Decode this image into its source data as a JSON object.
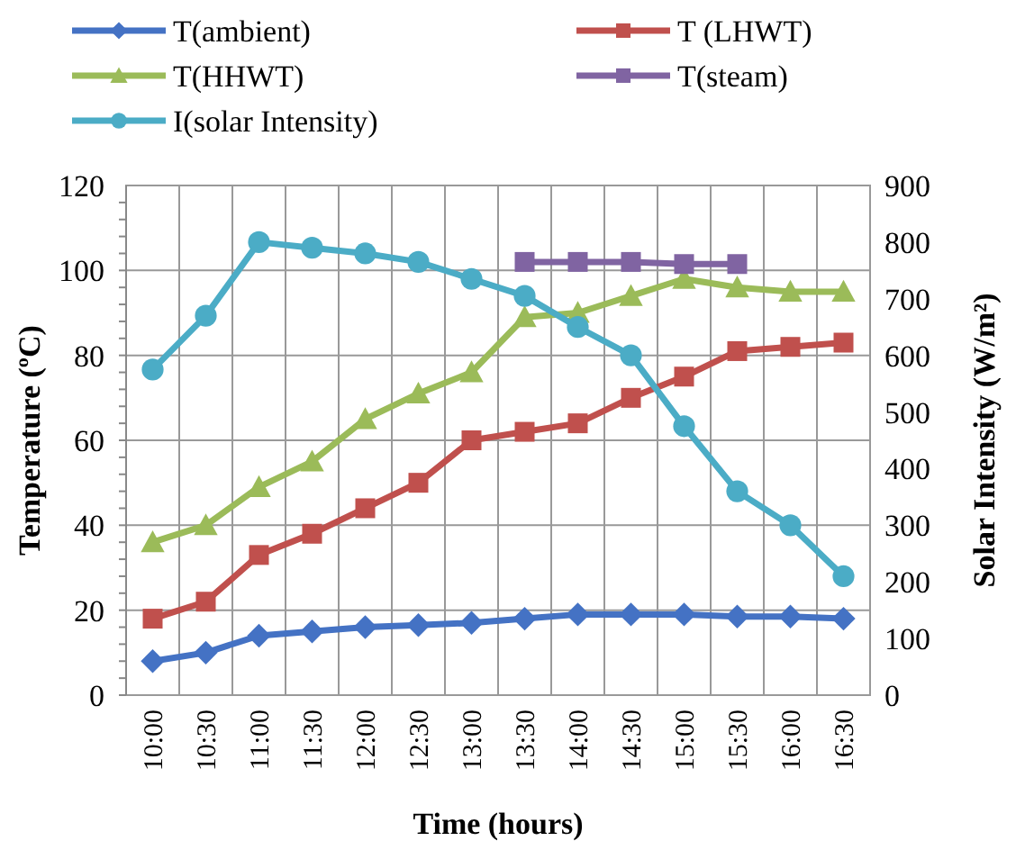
{
  "chart_data": {
    "type": "line",
    "xlabel": "Time (hours)",
    "ylabel": "Temperature (ºC)",
    "y2label": "Solar Intensity (W/m²)",
    "categories": [
      "10:00",
      "10:30",
      "11:00",
      "11:30",
      "12:00",
      "12:30",
      "13:00",
      "13:30",
      "14:00",
      "14:30",
      "15:00",
      "15:30",
      "16:00",
      "16:30"
    ],
    "series": [
      {
        "name": "T(ambient)",
        "color": "#4472c4",
        "marker": "diamond",
        "values": [
          8,
          10,
          14,
          15,
          16,
          16.5,
          17,
          18,
          19,
          19,
          19,
          18.5,
          18.5,
          18
        ]
      },
      {
        "name": "T (LHWT)",
        "color": "#c0504d",
        "marker": "square",
        "values": [
          18,
          22,
          33,
          38,
          44,
          50,
          60,
          62,
          64,
          70,
          75,
          81,
          82,
          83
        ]
      },
      {
        "name": "T(HHWT)",
        "color": "#9bbb59",
        "marker": "triangle",
        "values": [
          36,
          40,
          49,
          55,
          65,
          71,
          76,
          89,
          90,
          94,
          98,
          96,
          95,
          95
        ]
      },
      {
        "name": "T(steam)",
        "color": "#8064a2",
        "marker": "square",
        "values": [
          null,
          null,
          null,
          null,
          null,
          null,
          null,
          102,
          102,
          102,
          101.5,
          101.5,
          null,
          null
        ]
      },
      {
        "name": "I(solar Intensity)",
        "color": "#4bacc6",
        "marker": "circle",
        "axis": "y2",
        "values": [
          575,
          670,
          800,
          790,
          780,
          765,
          735,
          705,
          650,
          600,
          475,
          360,
          300,
          210
        ]
      }
    ],
    "ylim": [
      0,
      120
    ],
    "yticks": [
      0,
      20,
      40,
      60,
      80,
      100,
      120
    ],
    "y2lim": [
      0,
      900
    ],
    "y2ticks": [
      0,
      100,
      200,
      300,
      400,
      500,
      600,
      700,
      800,
      900
    ],
    "grid": true,
    "legend": "top",
    "line_style": "solid"
  }
}
